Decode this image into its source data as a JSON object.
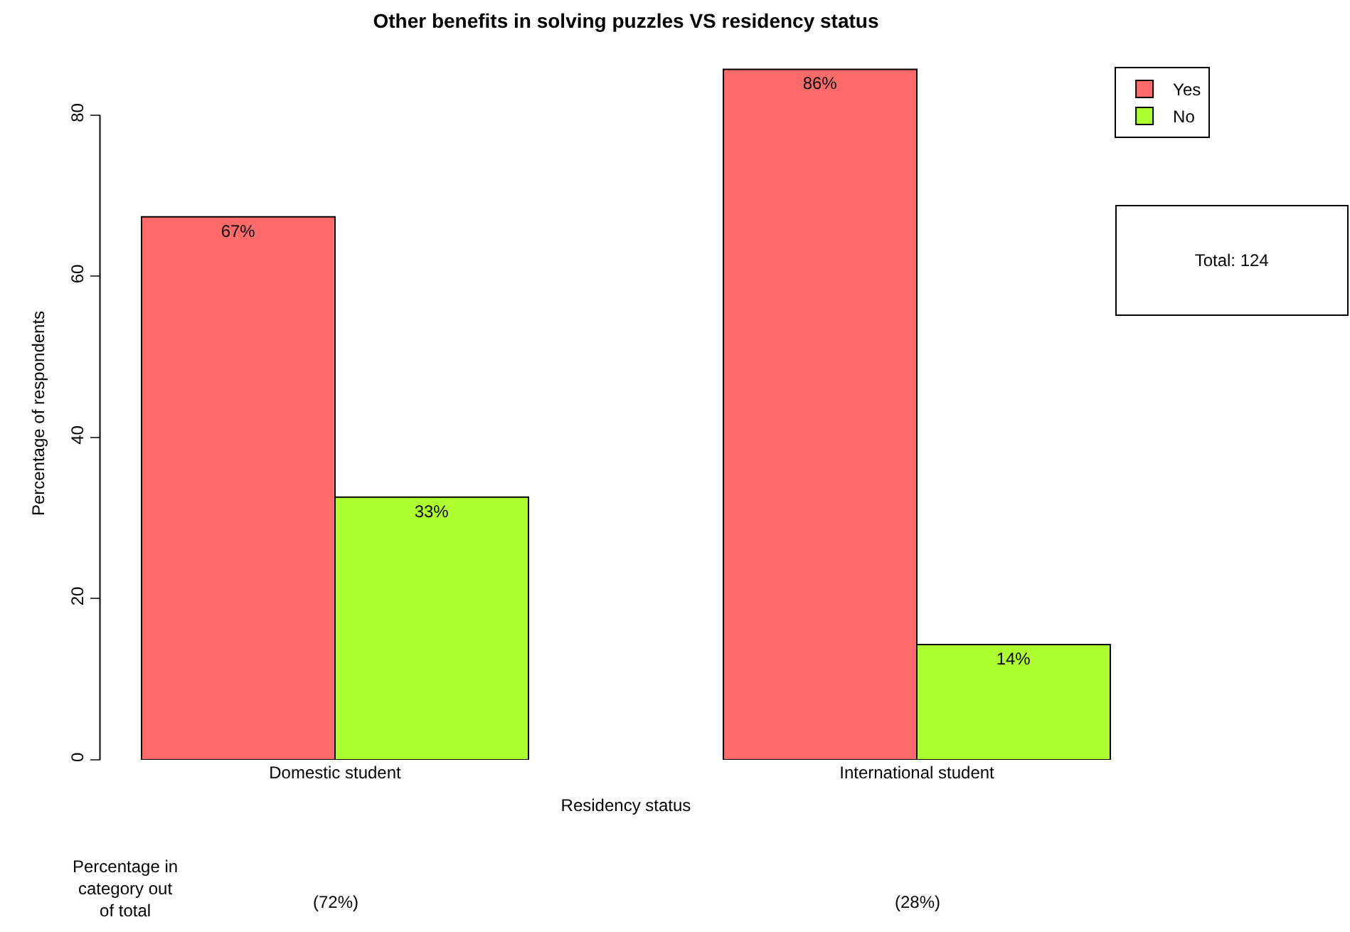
{
  "chart_data": {
    "type": "bar",
    "title": "Other benefits in solving puzzles VS residency status",
    "xlabel": "Residency status",
    "ylabel": "Percentage of respondents",
    "categories": [
      "Domestic student",
      "International student"
    ],
    "series": [
      {
        "name": "Yes",
        "color": "#ff6a6a",
        "values": [
          67.4,
          85.7
        ],
        "value_labels": [
          "67%",
          "86%"
        ]
      },
      {
        "name": "No",
        "color": "#adff2f",
        "values": [
          32.6,
          14.3
        ],
        "value_labels": [
          "33%",
          "14%"
        ]
      }
    ],
    "ylim": [
      0,
      86
    ],
    "yticks": [
      0,
      20,
      40,
      60,
      80
    ],
    "grid": false,
    "legend": "top right",
    "annotations": [
      "Total: 124",
      "Percentage in category out of total",
      "(72%)",
      "(28%)"
    ]
  }
}
